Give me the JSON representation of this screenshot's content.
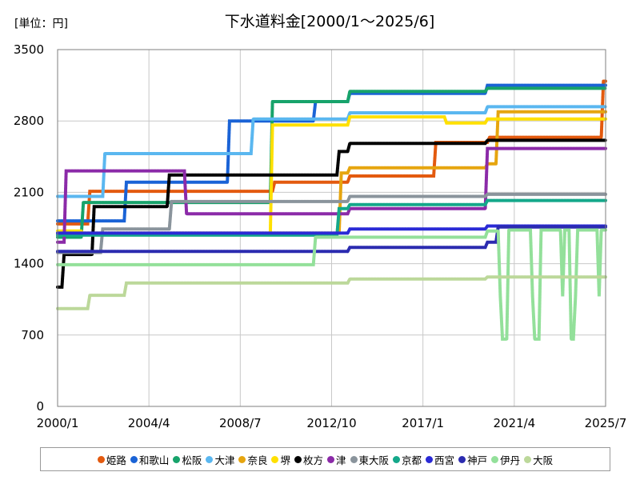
{
  "chart_data": {
    "type": "line",
    "title": "下水道料金[2000/1～2025/6]",
    "unit_label": "[単位：円]",
    "xlabel": "",
    "ylabel": "",
    "x_range": [
      2000.0,
      2025.5
    ],
    "ylim": [
      0,
      3500
    ],
    "y_ticks": [
      "0",
      "700",
      "1400",
      "2100",
      "2800",
      "3500"
    ],
    "y_tick_values": [
      0,
      700,
      1400,
      2100,
      2800,
      3500
    ],
    "x_ticks": [
      "2000/1",
      "2004/4",
      "2008/7",
      "2012/10",
      "2017/1",
      "2021/4",
      "2025/7"
    ],
    "x_tick_values": [
      2000.0,
      2004.25,
      2008.5,
      2012.75,
      2017.0,
      2021.25,
      2025.5
    ],
    "grid": true,
    "legend_position": "bottom",
    "series": [
      {
        "name": "姫路",
        "color": "#e35a0f",
        "points": [
          [
            2000.0,
            1790
          ],
          [
            2001.4,
            1790
          ],
          [
            2001.5,
            2110
          ],
          [
            2010.0,
            2110
          ],
          [
            2010.1,
            2200
          ],
          [
            2013.5,
            2200
          ],
          [
            2013.6,
            2260
          ],
          [
            2017.5,
            2260
          ],
          [
            2017.6,
            2590
          ],
          [
            2020.0,
            2590
          ],
          [
            2020.1,
            2640
          ],
          [
            2025.3,
            2640
          ],
          [
            2025.4,
            3190
          ],
          [
            2025.5,
            3190
          ]
        ]
      },
      {
        "name": "和歌山",
        "color": "#1a63d6",
        "points": [
          [
            2000.0,
            1820
          ],
          [
            2003.1,
            1820
          ],
          [
            2003.2,
            2200
          ],
          [
            2007.9,
            2200
          ],
          [
            2008.0,
            2800
          ],
          [
            2011.9,
            2800
          ],
          [
            2012.0,
            2990
          ],
          [
            2013.5,
            2990
          ],
          [
            2013.6,
            3070
          ],
          [
            2019.9,
            3070
          ],
          [
            2020.0,
            3150
          ],
          [
            2025.5,
            3150
          ]
        ]
      },
      {
        "name": "松阪",
        "color": "#17a36b",
        "points": [
          [
            2000.0,
            1660
          ],
          [
            2001.1,
            1660
          ],
          [
            2001.2,
            2000
          ],
          [
            2009.9,
            2000
          ],
          [
            2010.0,
            2990
          ],
          [
            2013.5,
            2990
          ],
          [
            2013.6,
            3090
          ],
          [
            2019.9,
            3090
          ],
          [
            2020.0,
            3120
          ],
          [
            2025.5,
            3120
          ]
        ]
      },
      {
        "name": "大津",
        "color": "#5ab7f0",
        "points": [
          [
            2000.0,
            2060
          ],
          [
            2002.1,
            2060
          ],
          [
            2002.2,
            2480
          ],
          [
            2009.0,
            2480
          ],
          [
            2009.1,
            2820
          ],
          [
            2013.5,
            2820
          ],
          [
            2013.6,
            2880
          ],
          [
            2019.9,
            2880
          ],
          [
            2020.0,
            2940
          ],
          [
            2025.5,
            2940
          ]
        ]
      },
      {
        "name": "奈良",
        "color": "#e6a50f",
        "points": [
          [
            2000.0,
            1700
          ],
          [
            2013.1,
            1700
          ],
          [
            2013.2,
            2290
          ],
          [
            2013.5,
            2290
          ],
          [
            2013.6,
            2340
          ],
          [
            2019.9,
            2340
          ],
          [
            2020.0,
            2380
          ],
          [
            2020.4,
            2380
          ],
          [
            2020.5,
            2890
          ],
          [
            2025.5,
            2890
          ]
        ]
      },
      {
        "name": "堺",
        "color": "#ffe000",
        "points": [
          [
            2000.0,
            1720
          ],
          [
            2001.1,
            1720
          ],
          [
            2001.2,
            1690
          ],
          [
            2009.9,
            1690
          ],
          [
            2010.0,
            2760
          ],
          [
            2013.5,
            2760
          ],
          [
            2013.6,
            2840
          ],
          [
            2018.0,
            2840
          ],
          [
            2018.1,
            2780
          ],
          [
            2019.9,
            2780
          ],
          [
            2020.0,
            2820
          ],
          [
            2025.5,
            2820
          ]
        ]
      },
      {
        "name": "枚方",
        "color": "#000000",
        "points": [
          [
            2000.0,
            1170
          ],
          [
            2000.2,
            1170
          ],
          [
            2000.3,
            1490
          ],
          [
            2001.6,
            1490
          ],
          [
            2001.7,
            1960
          ],
          [
            2005.1,
            1960
          ],
          [
            2005.2,
            2270
          ],
          [
            2013.0,
            2270
          ],
          [
            2013.1,
            2500
          ],
          [
            2013.5,
            2500
          ],
          [
            2013.6,
            2580
          ],
          [
            2019.9,
            2580
          ],
          [
            2020.0,
            2610
          ],
          [
            2025.5,
            2610
          ]
        ]
      },
      {
        "name": "津",
        "color": "#8b2aa8",
        "points": [
          [
            2000.0,
            1610
          ],
          [
            2000.3,
            1610
          ],
          [
            2000.4,
            2310
          ],
          [
            2005.9,
            2310
          ],
          [
            2006.0,
            1890
          ],
          [
            2013.5,
            1890
          ],
          [
            2013.6,
            1940
          ],
          [
            2019.9,
            1940
          ],
          [
            2020.0,
            2530
          ],
          [
            2025.5,
            2530
          ]
        ]
      },
      {
        "name": "東大阪",
        "color": "#8a949c",
        "points": [
          [
            2000.0,
            1510
          ],
          [
            2002.0,
            1510
          ],
          [
            2002.1,
            1740
          ],
          [
            2005.2,
            1740
          ],
          [
            2005.3,
            2010
          ],
          [
            2013.5,
            2010
          ],
          [
            2013.6,
            2060
          ],
          [
            2019.9,
            2060
          ],
          [
            2020.0,
            2080
          ],
          [
            2025.5,
            2080
          ]
        ]
      },
      {
        "name": "京都",
        "color": "#14a88a",
        "points": [
          [
            2000.0,
            1680
          ],
          [
            2013.0,
            1680
          ],
          [
            2013.1,
            1940
          ],
          [
            2013.5,
            1940
          ],
          [
            2013.6,
            1980
          ],
          [
            2019.9,
            1980
          ],
          [
            2020.0,
            2020
          ],
          [
            2025.5,
            2020
          ]
        ]
      },
      {
        "name": "西宮",
        "color": "#2a2ad6",
        "points": [
          [
            2000.0,
            1700
          ],
          [
            2013.5,
            1700
          ],
          [
            2013.6,
            1740
          ],
          [
            2019.9,
            1740
          ],
          [
            2020.0,
            1770
          ],
          [
            2025.5,
            1770
          ]
        ]
      },
      {
        "name": "神戸",
        "color": "#2b2bb0",
        "points": [
          [
            2000.0,
            1520
          ],
          [
            2013.5,
            1520
          ],
          [
            2013.6,
            1560
          ],
          [
            2019.9,
            1560
          ],
          [
            2020.0,
            1610
          ],
          [
            2020.4,
            1610
          ],
          [
            2020.5,
            1760
          ],
          [
            2025.5,
            1760
          ]
        ]
      },
      {
        "name": "伊丹",
        "color": "#93e09a",
        "points": [
          [
            2000.0,
            1390
          ],
          [
            2011.9,
            1390
          ],
          [
            2012.0,
            1660
          ],
          [
            2019.9,
            1660
          ],
          [
            2020.0,
            1720
          ],
          [
            2020.5,
            1720
          ],
          [
            2020.6,
            1080
          ],
          [
            2020.7,
            660
          ],
          [
            2020.9,
            660
          ],
          [
            2021.0,
            1730
          ],
          [
            2022.0,
            1730
          ],
          [
            2022.1,
            1080
          ],
          [
            2022.2,
            660
          ],
          [
            2022.4,
            660
          ],
          [
            2022.5,
            1730
          ],
          [
            2023.4,
            1730
          ],
          [
            2023.5,
            1080
          ],
          [
            2023.6,
            1730
          ],
          [
            2023.8,
            1730
          ],
          [
            2023.9,
            660
          ],
          [
            2024.0,
            660
          ],
          [
            2024.1,
            1080
          ],
          [
            2024.2,
            1730
          ],
          [
            2025.1,
            1730
          ],
          [
            2025.2,
            1080
          ],
          [
            2025.3,
            1730
          ],
          [
            2025.5,
            1730
          ]
        ]
      },
      {
        "name": "大阪",
        "color": "#bcd89a",
        "points": [
          [
            2000.0,
            960
          ],
          [
            2001.4,
            960
          ],
          [
            2001.5,
            1090
          ],
          [
            2003.1,
            1090
          ],
          [
            2003.2,
            1210
          ],
          [
            2013.5,
            1210
          ],
          [
            2013.6,
            1250
          ],
          [
            2019.9,
            1250
          ],
          [
            2020.0,
            1270
          ],
          [
            2025.5,
            1270
          ]
        ]
      }
    ]
  }
}
